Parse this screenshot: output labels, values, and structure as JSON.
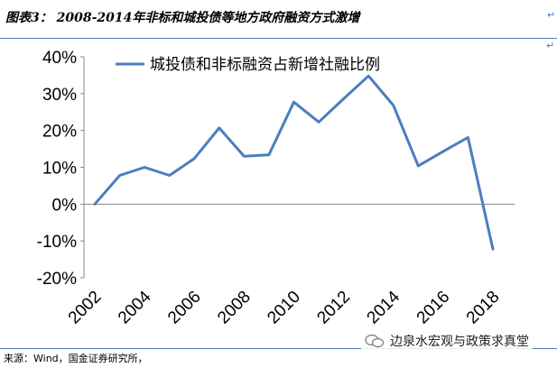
{
  "header": {
    "title": "图表3： 2008-2014年非标和城投债等地方政府融资方式激增"
  },
  "footer": {
    "source": "来源：Wind，国金证券研究所，",
    "watermark": "边泉水宏观与政策求真堂",
    "watermark_icon": "wechat-icon"
  },
  "colors": {
    "line": "#4a7ebf",
    "rule": "#4a7ebf"
  },
  "chart_data": {
    "type": "line",
    "title": "",
    "xlabel": "",
    "ylabel": "",
    "ylim": [
      -20,
      40
    ],
    "yticks": [
      "40%",
      "30%",
      "20%",
      "10%",
      "0%",
      "-10%",
      "-20%"
    ],
    "ytick_values": [
      40,
      30,
      20,
      10,
      0,
      -10,
      -20
    ],
    "xlim": [
      2002,
      2018
    ],
    "xticks": [
      "2002",
      "2004",
      "2006",
      "2008",
      "2010",
      "2012",
      "2014",
      "2016",
      "2018"
    ],
    "xtick_values": [
      2002,
      2004,
      2006,
      2008,
      2010,
      2012,
      2014,
      2016,
      2018
    ],
    "grid": false,
    "legend": "top-left",
    "series": [
      {
        "name": "城投债和非标融资占新增社融比例",
        "x": [
          2002,
          2003,
          2004,
          2005,
          2006,
          2007,
          2008,
          2009,
          2010,
          2011,
          2012,
          2013,
          2014,
          2015,
          2016,
          2017,
          2018
        ],
        "values": [
          0.0,
          7.8,
          10.0,
          7.8,
          12.4,
          20.7,
          13.0,
          13.4,
          27.7,
          22.3,
          28.6,
          34.8,
          26.8,
          10.4,
          14.3,
          18.1,
          -12.2
        ]
      }
    ]
  }
}
